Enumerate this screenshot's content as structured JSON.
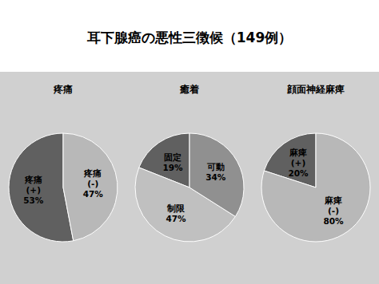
{
  "title": "耳下腺癌の悪性三徴候（149例）",
  "chart_data": [
    {
      "type": "pie",
      "subtitle": "疼痛",
      "categories": [
        "疼痛\n(+)",
        "疼痛\n(-)"
      ],
      "values": [
        53,
        47
      ],
      "value_labels": [
        "53%",
        "47%"
      ],
      "data_labels": true,
      "colors": [
        "#606060",
        "#b8b8b8"
      ]
    },
    {
      "type": "pie",
      "subtitle": "癒着",
      "categories": [
        "固定",
        "制限",
        "可動"
      ],
      "values": [
        19,
        47,
        34
      ],
      "value_labels": [
        "19%",
        "47%",
        "34%"
      ],
      "data_labels": true,
      "colors": [
        "#606060",
        "#c0c0c0",
        "#909090"
      ]
    },
    {
      "type": "pie",
      "subtitle": "顔面神経麻痺",
      "categories": [
        "麻痺\n(+)",
        "麻痺\n(-)"
      ],
      "values": [
        20,
        80
      ],
      "value_labels": [
        "20%",
        "80%"
      ],
      "data_labels": true,
      "colors": [
        "#606060",
        "#b8b8b8"
      ]
    }
  ]
}
